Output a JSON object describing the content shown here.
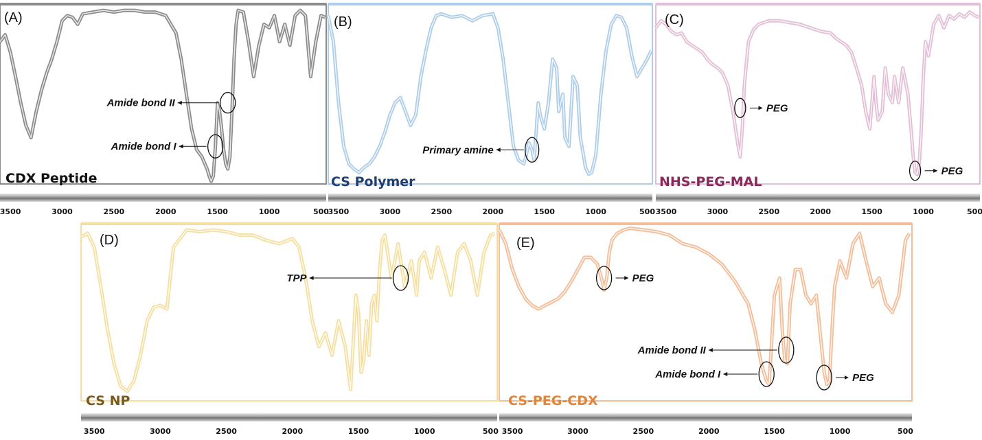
{
  "chart_data": [
    {
      "type": "line",
      "panel": "(A)",
      "title": "CDX Peptide",
      "color": "#8c8c8c",
      "label_color": "#111111",
      "xlim": [
        3600,
        450
      ],
      "x_ticks": [
        3500,
        3000,
        2500,
        2000,
        1500,
        1000,
        500
      ],
      "series": [
        {
          "x": [
            3600,
            3550,
            3500,
            3450,
            3400,
            3350,
            3300,
            3250,
            3200,
            3150,
            3100,
            3050,
            3000,
            2950,
            2900,
            2850,
            2800,
            2700,
            2600,
            2500,
            2400,
            2300,
            2200,
            2100,
            2000,
            1900,
            1850,
            1800,
            1750,
            1700,
            1650,
            1600,
            1580,
            1560,
            1540,
            1520,
            1500,
            1480,
            1460,
            1440,
            1420,
            1400,
            1380,
            1360,
            1340,
            1320,
            1300,
            1250,
            1200,
            1150,
            1100,
            1050,
            1000,
            950,
            900,
            850,
            800,
            750,
            700,
            650,
            600,
            550,
            500,
            460
          ],
          "y": [
            0.2,
            0.16,
            0.26,
            0.4,
            0.55,
            0.68,
            0.75,
            0.6,
            0.48,
            0.38,
            0.3,
            0.2,
            0.08,
            0.05,
            0.06,
            0.1,
            0.04,
            0.03,
            0.02,
            0.03,
            0.02,
            0.02,
            0.03,
            0.03,
            0.05,
            0.15,
            0.3,
            0.5,
            0.7,
            0.82,
            0.86,
            0.93,
            0.97,
            1.0,
            0.97,
            0.8,
            0.55,
            0.6,
            0.7,
            0.82,
            0.9,
            0.93,
            0.86,
            0.6,
            0.3,
            0.1,
            0.02,
            0.03,
            0.2,
            0.4,
            0.22,
            0.1,
            0.12,
            0.05,
            0.2,
            0.1,
            0.22,
            0.05,
            0.02,
            0.05,
            0.4,
            0.2,
            0.05,
            0.06
          ]
        }
      ],
      "annotations": [
        {
          "text": "Amide bond II",
          "x": 1400,
          "y": 0.55
        },
        {
          "text": "Amide bond I",
          "x": 1520,
          "y": 0.8
        }
      ]
    },
    {
      "type": "line",
      "panel": "(B)",
      "title": "CS Polymer",
      "color": "#aecde8",
      "label_color": "#1f3f73",
      "xlim": [
        3600,
        450
      ],
      "x_ticks": [
        3500,
        3000,
        2500,
        2000,
        1500,
        1000,
        500
      ],
      "series": [
        {
          "x": [
            3600,
            3550,
            3500,
            3450,
            3400,
            3350,
            3300,
            3250,
            3200,
            3150,
            3100,
            3050,
            3000,
            2950,
            2900,
            2850,
            2800,
            2750,
            2700,
            2650,
            2600,
            2550,
            2500,
            2450,
            2400,
            2300,
            2200,
            2100,
            2000,
            1950,
            1900,
            1850,
            1800,
            1750,
            1700,
            1680,
            1650,
            1620,
            1600,
            1580,
            1560,
            1540,
            1500,
            1460,
            1420,
            1380,
            1360,
            1320,
            1300,
            1260,
            1220,
            1180,
            1150,
            1120,
            1100,
            1070,
            1040,
            1000,
            950,
            900,
            850,
            800,
            750,
            700,
            650,
            600,
            550,
            500,
            460
          ],
          "y": [
            0.05,
            0.2,
            0.55,
            0.8,
            0.9,
            0.93,
            0.95,
            0.92,
            0.9,
            0.86,
            0.8,
            0.72,
            0.62,
            0.55,
            0.52,
            0.6,
            0.68,
            0.62,
            0.4,
            0.25,
            0.12,
            0.05,
            0.04,
            0.05,
            0.06,
            0.05,
            0.08,
            0.05,
            0.04,
            0.12,
            0.3,
            0.55,
            0.8,
            0.88,
            0.9,
            0.86,
            0.78,
            0.82,
            0.88,
            0.72,
            0.55,
            0.62,
            0.7,
            0.55,
            0.3,
            0.35,
            0.6,
            0.5,
            0.75,
            0.8,
            0.4,
            0.45,
            0.75,
            0.85,
            0.92,
            0.96,
            0.95,
            0.85,
            0.5,
            0.25,
            0.1,
            0.05,
            0.06,
            0.12,
            0.28,
            0.4,
            0.35,
            0.3,
            0.25
          ]
        }
      ],
      "annotations": [
        {
          "text": "Primary amine",
          "x": 1620,
          "y": 0.82
        }
      ]
    },
    {
      "type": "line",
      "panel": "(C)",
      "title": "NHS-PEG-MAL",
      "color": "#e2bfd6",
      "label_color": "#8a2a5c",
      "xlim": [
        3600,
        450
      ],
      "x_ticks": [
        3500,
        3000,
        2500,
        2000,
        1500,
        1000,
        500
      ],
      "series": [
        {
          "x": [
            3600,
            3550,
            3500,
            3450,
            3400,
            3350,
            3300,
            3250,
            3200,
            3150,
            3100,
            3050,
            3000,
            2950,
            2900,
            2850,
            2800,
            2780,
            2760,
            2740,
            2700,
            2650,
            2600,
            2500,
            2400,
            2300,
            2200,
            2100,
            2000,
            1900,
            1850,
            1800,
            1750,
            1700,
            1650,
            1600,
            1560,
            1520,
            1480,
            1460,
            1440,
            1400,
            1370,
            1340,
            1300,
            1280,
            1240,
            1200,
            1150,
            1120,
            1100,
            1080,
            1060,
            1040,
            1020,
            1000,
            980,
            950,
            900,
            850,
            800,
            750,
            700,
            650,
            600,
            550,
            500,
            460
          ],
          "y": [
            0.12,
            0.08,
            0.1,
            0.14,
            0.16,
            0.15,
            0.2,
            0.22,
            0.24,
            0.26,
            0.3,
            0.33,
            0.35,
            0.38,
            0.45,
            0.6,
            0.8,
            0.86,
            0.7,
            0.45,
            0.2,
            0.13,
            0.1,
            0.08,
            0.08,
            0.09,
            0.1,
            0.12,
            0.14,
            0.15,
            0.18,
            0.2,
            0.22,
            0.26,
            0.35,
            0.45,
            0.6,
            0.7,
            0.4,
            0.55,
            0.65,
            0.6,
            0.35,
            0.5,
            0.55,
            0.4,
            0.55,
            0.35,
            0.5,
            0.7,
            0.85,
            0.95,
            0.96,
            0.9,
            0.7,
            0.4,
            0.2,
            0.28,
            0.1,
            0.05,
            0.12,
            0.05,
            0.07,
            0.04,
            0.06,
            0.03,
            0.05,
            0.06
          ]
        }
      ],
      "annotations": [
        {
          "text": "PEG",
          "x": 2780,
          "y": 0.58
        },
        {
          "text": "PEG",
          "x": 1080,
          "y": 0.94
        }
      ]
    },
    {
      "type": "line",
      "panel": "(D)",
      "title": "CS NP",
      "color": "#f5dfa0",
      "label_color": "#7a5a1c",
      "xlim": [
        3600,
        450
      ],
      "x_ticks": [
        3500,
        3000,
        2500,
        2000,
        1500,
        1000,
        500
      ],
      "series": [
        {
          "x": [
            3600,
            3550,
            3500,
            3450,
            3400,
            3350,
            3300,
            3250,
            3200,
            3150,
            3100,
            3050,
            3000,
            2950,
            2900,
            2850,
            2800,
            2700,
            2600,
            2500,
            2400,
            2300,
            2200,
            2100,
            2000,
            1950,
            1900,
            1850,
            1800,
            1750,
            1700,
            1650,
            1600,
            1560,
            1520,
            1500,
            1480,
            1460,
            1440,
            1420,
            1400,
            1380,
            1360,
            1340,
            1320,
            1300,
            1250,
            1200,
            1150,
            1100,
            1080,
            1060,
            1040,
            1000,
            950,
            900,
            850,
            800,
            750,
            700,
            650,
            600,
            550,
            500,
            470
          ],
          "y": [
            0.06,
            0.04,
            0.12,
            0.35,
            0.6,
            0.8,
            0.93,
            0.96,
            0.9,
            0.75,
            0.55,
            0.47,
            0.46,
            0.48,
            0.12,
            0.07,
            0.02,
            0.03,
            0.02,
            0.03,
            0.05,
            0.05,
            0.08,
            0.1,
            0.07,
            0.12,
            0.3,
            0.55,
            0.7,
            0.62,
            0.75,
            0.55,
            0.7,
            0.95,
            0.4,
            0.5,
            0.85,
            0.78,
            0.55,
            0.75,
            0.45,
            0.4,
            0.55,
            0.25,
            0.08,
            0.05,
            0.3,
            0.1,
            0.35,
            0.2,
            0.3,
            0.4,
            0.2,
            0.15,
            0.3,
            0.12,
            0.25,
            0.4,
            0.15,
            0.1,
            0.2,
            0.4,
            0.15,
            0.05,
            0.04
          ]
        }
      ],
      "annotations": [
        {
          "text": "TPP",
          "x": 1180,
          "y": 0.3
        }
      ]
    },
    {
      "type": "line",
      "panel": "(E)",
      "title": "CS-PEG-CDX",
      "color": "#f2bd98",
      "label_color": "#e0853c",
      "xlim": [
        3600,
        450
      ],
      "x_ticks": [
        3500,
        3000,
        2500,
        2000,
        1500,
        1000,
        500
      ],
      "series": [
        {
          "x": [
            3600,
            3550,
            3500,
            3450,
            3400,
            3350,
            3300,
            3250,
            3200,
            3150,
            3100,
            3050,
            3000,
            2950,
            2900,
            2850,
            2820,
            2800,
            2780,
            2760,
            2740,
            2700,
            2650,
            2600,
            2500,
            2400,
            2300,
            2200,
            2100,
            2000,
            1900,
            1800,
            1700,
            1650,
            1600,
            1560,
            1540,
            1500,
            1460,
            1440,
            1420,
            1400,
            1380,
            1340,
            1300,
            1260,
            1220,
            1180,
            1140,
            1120,
            1100,
            1080,
            1060,
            1040,
            1000,
            950,
            900,
            850,
            800,
            750,
            700,
            650,
            600,
            550,
            500,
            470
          ],
          "y": [
            0.02,
            0.1,
            0.25,
            0.35,
            0.42,
            0.46,
            0.48,
            0.46,
            0.44,
            0.42,
            0.38,
            0.32,
            0.25,
            0.18,
            0.18,
            0.22,
            0.3,
            0.37,
            0.3,
            0.15,
            0.08,
            0.04,
            0.02,
            0.01,
            0.02,
            0.03,
            0.05,
            0.1,
            0.12,
            0.16,
            0.22,
            0.32,
            0.45,
            0.6,
            0.8,
            0.9,
            0.92,
            0.4,
            0.3,
            0.6,
            0.78,
            0.8,
            0.45,
            0.25,
            0.25,
            0.4,
            0.45,
            0.4,
            0.7,
            0.85,
            0.92,
            0.9,
            0.6,
            0.35,
            0.2,
            0.3,
            0.1,
            0.04,
            0.2,
            0.35,
            0.3,
            0.45,
            0.5,
            0.4,
            0.08,
            0.04
          ]
        }
      ],
      "annotations": [
        {
          "text": "PEG",
          "x": 2800,
          "y": 0.3
        },
        {
          "text": "Amide bond II",
          "x": 1410,
          "y": 0.72
        },
        {
          "text": "Amide bond I",
          "x": 1560,
          "y": 0.86
        },
        {
          "text": "PEG",
          "x": 1120,
          "y": 0.88
        }
      ]
    }
  ]
}
